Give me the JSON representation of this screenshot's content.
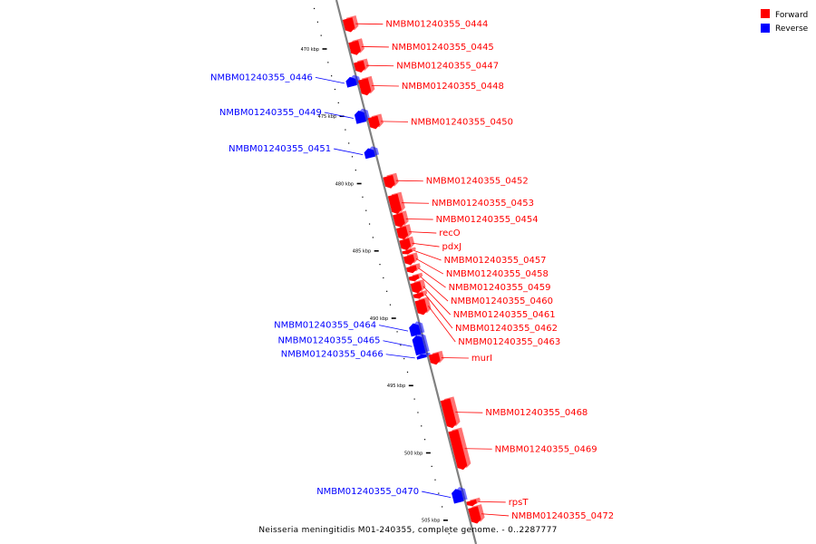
{
  "colors": {
    "forward": "#ff0000",
    "reverse": "#0000ff",
    "backbone": "#808080"
  },
  "legend": [
    {
      "label": "Forward",
      "color": "#ff0000"
    },
    {
      "label": "Reverse",
      "color": "#0000ff"
    }
  ],
  "caption": "Neisseria meningitidis M01-240355, complete genome. - 0..2287777",
  "ticks": [
    {
      "kbp": 470,
      "label": "470 kbp"
    },
    {
      "kbp": 475,
      "label": "475 kbp"
    },
    {
      "kbp": 480,
      "label": "480 kbp"
    },
    {
      "kbp": 485,
      "label": "485 kbp"
    },
    {
      "kbp": 490,
      "label": "490 kbp"
    },
    {
      "kbp": 495,
      "label": "495 kbp"
    },
    {
      "kbp": 500,
      "label": "500 kbp"
    },
    {
      "kbp": 505,
      "label": "505 kbp"
    }
  ],
  "genes": [
    {
      "label": "NMBM01240355_0444",
      "strand": "forward",
      "start": 468.3,
      "end": 469.3
    },
    {
      "label": "NMBM01240355_0445",
      "strand": "forward",
      "start": 470.0,
      "end": 471.0
    },
    {
      "label": "NMBM01240355_0447",
      "strand": "forward",
      "start": 471.5,
      "end": 472.3
    },
    {
      "label": "NMBM01240355_0446",
      "strand": "reverse",
      "start": 472.4,
      "end": 473.1
    },
    {
      "label": "NMBM01240355_0448",
      "strand": "forward",
      "start": 472.8,
      "end": 474.0
    },
    {
      "label": "NMBM01240355_0449",
      "strand": "reverse",
      "start": 474.9,
      "end": 475.8
    },
    {
      "label": "NMBM01240355_0450",
      "strand": "forward",
      "start": 475.6,
      "end": 476.5
    },
    {
      "label": "NMBM01240355_0451",
      "strand": "reverse",
      "start": 477.7,
      "end": 478.4
    },
    {
      "label": "NMBM01240355_0452",
      "strand": "forward",
      "start": 480.0,
      "end": 480.9
    },
    {
      "label": "NMBM01240355_0453",
      "strand": "forward",
      "start": 481.4,
      "end": 482.8
    },
    {
      "label": "NMBM01240355_0454",
      "strand": "forward",
      "start": 482.8,
      "end": 483.8
    },
    {
      "label": "recO",
      "strand": "forward",
      "start": 483.8,
      "end": 484.7
    },
    {
      "label": "pdxJ",
      "strand": "forward",
      "start": 484.7,
      "end": 485.5
    },
    {
      "label": "NMBM01240355_0457",
      "strand": "forward",
      "start": 485.5,
      "end": 485.8
    },
    {
      "label": "NMBM01240355_0458",
      "strand": "forward",
      "start": 485.9,
      "end": 486.6
    },
    {
      "label": "NMBM01240355_0459",
      "strand": "forward",
      "start": 486.7,
      "end": 487.2
    },
    {
      "label": "NMBM01240355_0460",
      "strand": "forward",
      "start": 487.4,
      "end": 487.8
    },
    {
      "label": "NMBM01240355_0461",
      "strand": "forward",
      "start": 487.9,
      "end": 488.7
    },
    {
      "label": "NMBM01240355_0462",
      "strand": "forward",
      "start": 488.7,
      "end": 489.1
    },
    {
      "label": "NMBM01240355_0463",
      "strand": "forward",
      "start": 489.2,
      "end": 490.3
    },
    {
      "label": "NMBM01240355_0464",
      "strand": "reverse",
      "start": 490.7,
      "end": 491.6
    },
    {
      "label": "NMBM01240355_0465",
      "strand": "reverse",
      "start": 491.6,
      "end": 493.0
    },
    {
      "label": "NMBM01240355_0466",
      "strand": "reverse",
      "start": 493.0,
      "end": 493.3
    },
    {
      "label": "murI",
      "strand": "forward",
      "start": 493.2,
      "end": 494.0
    },
    {
      "label": "NMBM01240355_0468",
      "strand": "forward",
      "start": 496.6,
      "end": 498.7
    },
    {
      "label": "NMBM01240355_0469",
      "strand": "forward",
      "start": 498.9,
      "end": 501.8
    },
    {
      "label": "NMBM01240355_0470",
      "strand": "reverse",
      "start": 503.0,
      "end": 504.0
    },
    {
      "label": "rpsT",
      "strand": "forward",
      "start": 504.1,
      "end": 504.5
    },
    {
      "label": "NMBM01240355_0472",
      "strand": "forward",
      "start": 504.6,
      "end": 505.8
    }
  ]
}
